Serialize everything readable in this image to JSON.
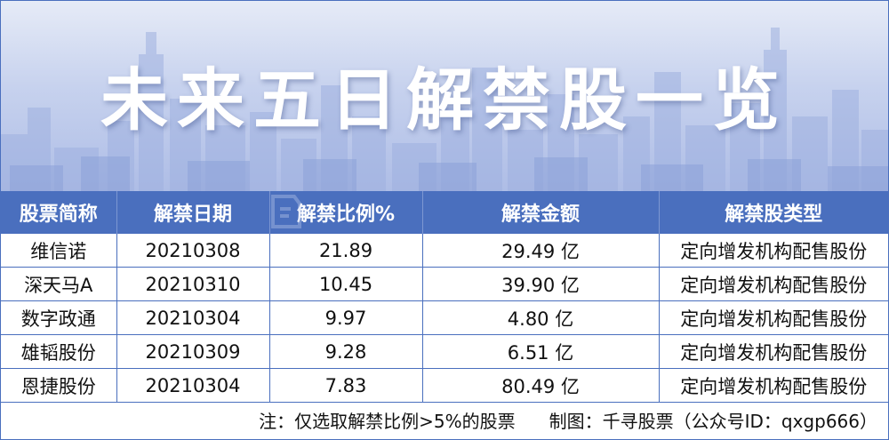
{
  "title": "未来五日解禁股一览",
  "table": {
    "headers": [
      "股票简称",
      "解禁日期",
      "解禁比例%",
      "解禁金额",
      "解禁股类型"
    ],
    "rows": [
      [
        "维信诺",
        "20210308",
        "21.89",
        "29.49 亿",
        "定向增发机构配售股份"
      ],
      [
        "深天马A",
        "20210310",
        "10.45",
        "39.90 亿",
        "定向增发机构配售股份"
      ],
      [
        "数字政通",
        "20210304",
        "9.97",
        "4.80 亿",
        "定向增发机构配售股份"
      ],
      [
        "雄韬股份",
        "20210309",
        "9.28",
        "6.51 亿",
        "定向增发机构配售股份"
      ],
      [
        "恩捷股份",
        "20210304",
        "7.83",
        "80.49 亿",
        "定向增发机构配售股份"
      ]
    ]
  },
  "footer": {
    "note": "注：仅选取解禁比例>5%的股票",
    "credit": "制图：千寻股票（公众号ID：qxgp666）"
  },
  "colors": {
    "header_bg": "#4a6fbe",
    "banner": "#aebde6"
  }
}
